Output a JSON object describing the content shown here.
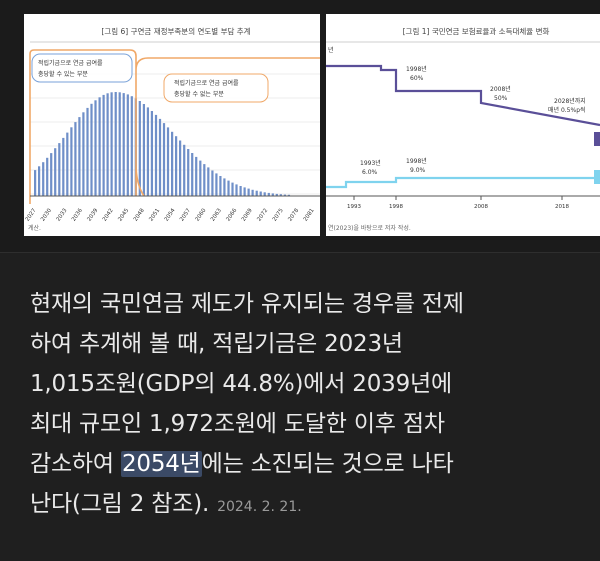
{
  "left_chart": {
    "title": "[그림 6] 구연금 재정부족분의 연도별 부담 추계",
    "annotation_left": [
      "적립기금으로 연금 급여를",
      "충당할 수 있는 부분"
    ],
    "annotation_right": [
      "적립기금으로 연금 급여를",
      "충당할 수 없는 부분"
    ],
    "x_ticks": [
      "2027",
      "2030",
      "2033",
      "2036",
      "2039",
      "2042",
      "2045",
      "2048",
      "2051",
      "2054",
      "2057",
      "2060",
      "2063",
      "2066",
      "2069",
      "2072",
      "2075",
      "2078",
      "2081"
    ],
    "footnote": "계산."
  },
  "right_chart": {
    "title": "[그림 1] 국민연금 보험료율과 소득대체율 변화",
    "labels": {
      "left_edge": "년",
      "y1998": [
        "1998년",
        "60%"
      ],
      "y2008": [
        "2008년",
        "50%"
      ],
      "y2028": [
        "2028년까지",
        "매년 0.5%p씩"
      ],
      "y1993": [
        "1993년",
        "6.0%"
      ],
      "y1998_rate": [
        "1998년",
        "9.0%"
      ]
    },
    "x_ticks": [
      "1993",
      "1998",
      "2008",
      "2018"
    ],
    "footnote": "연(2023)을 바탕으로 저자 작성."
  },
  "snippet": {
    "lines": [
      "현재의 국민연금 제도가 유지되는 경우를 전제",
      "하여 추계해 볼 때, 적립기금은 2023년",
      "1,015조원(GDP의 44.8%)에서 2039년에",
      "최대 규모인 1,972조원에 도달한 이후 점차"
    ],
    "line5_before": "감소하여 ",
    "line5_highlight": "2054년",
    "line5_after": "에는 소진되는 것으로 나타",
    "line6": "난다(그림 2 참조).",
    "date": "2024. 2. 21."
  },
  "colors": {
    "background": "#1f1f1f",
    "text": "#e9e9e9",
    "highlight": "#3b4a66",
    "bar_blue": "#6f8fc8",
    "curve_orange": "#f0a868",
    "line_purple": "#5a4f98",
    "line_cyan": "#7fd3ee"
  }
}
